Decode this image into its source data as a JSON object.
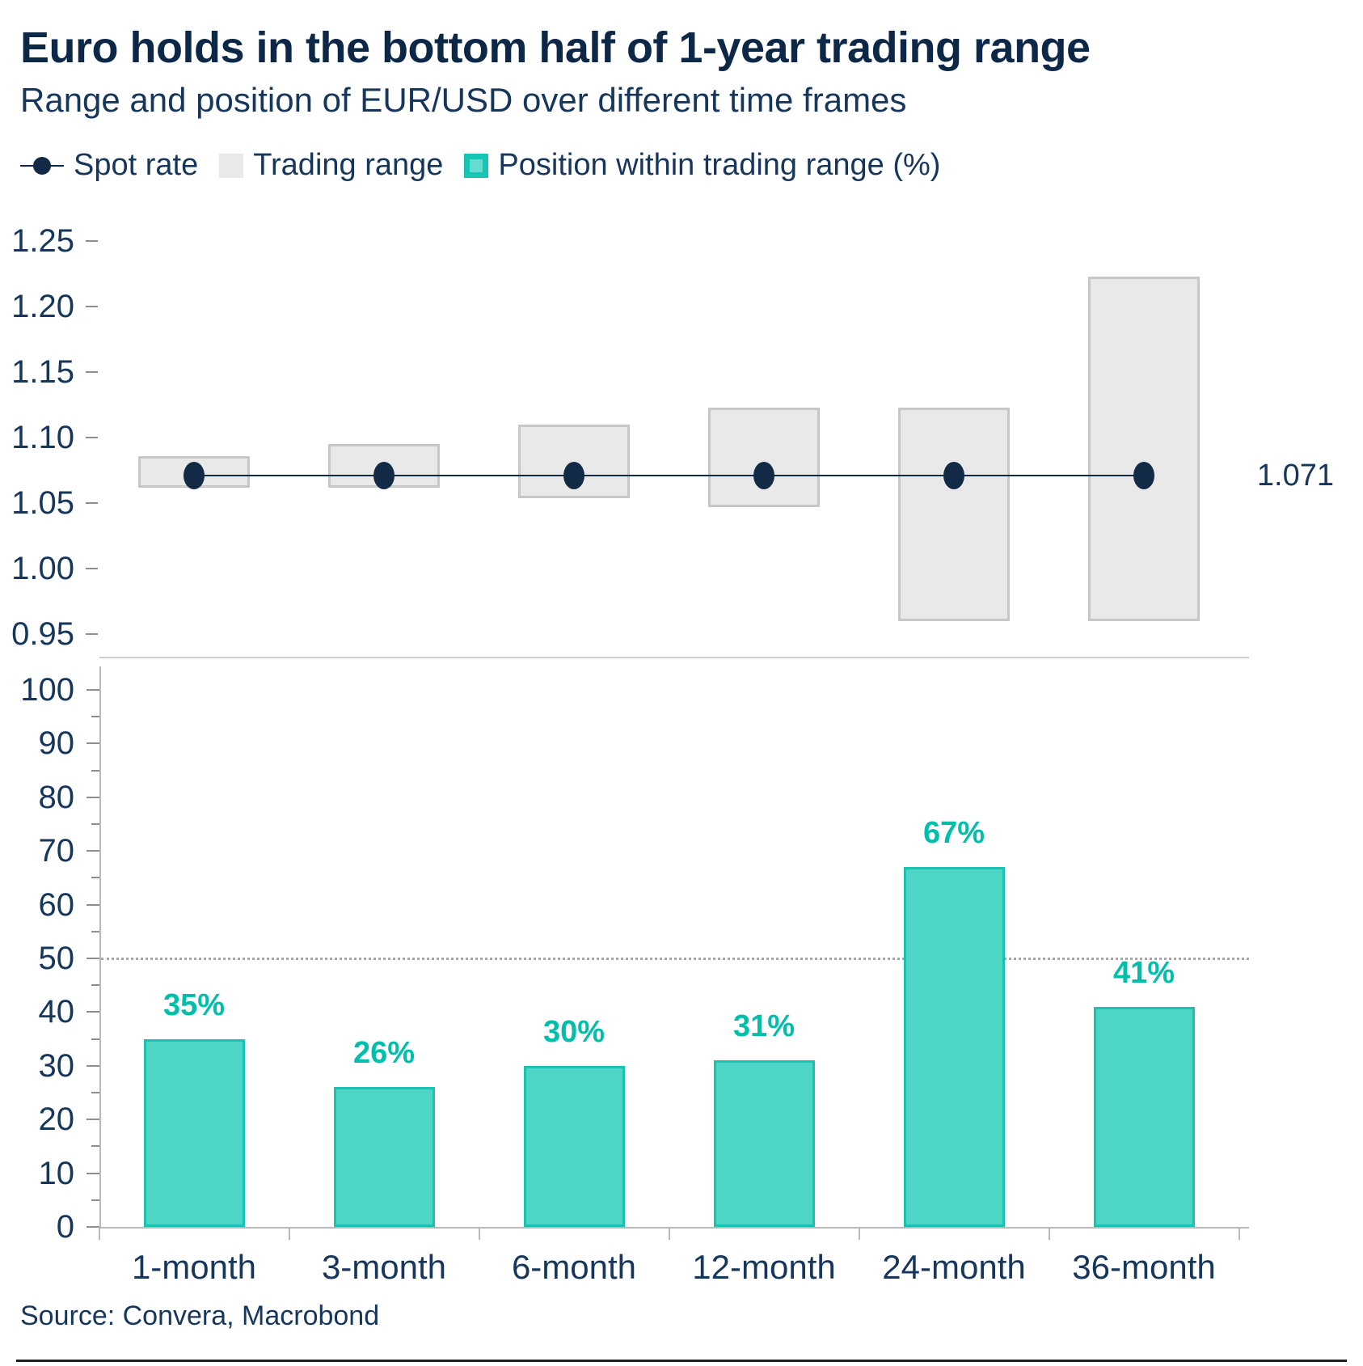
{
  "header": {
    "title": "Euro holds in the bottom half of 1-year trading range",
    "subtitle": "Range and position of EUR/USD over different time frames"
  },
  "legend": {
    "items": [
      {
        "label": "Spot rate",
        "marker": "spot-dot-line-icon"
      },
      {
        "label": "Trading range",
        "marker": "gray-square-icon"
      },
      {
        "label": "Position within trading range (%)",
        "marker": "teal-square-icon"
      }
    ]
  },
  "footer": {
    "source": "Source: Convera, Macrobond"
  },
  "colors": {
    "title_navy": "#0d2847",
    "text_navy": "#16365c",
    "spot_navy": "#122a45",
    "range_fill": "#e9e9e9",
    "range_border": "#c7c7c7",
    "position_fill": "#4dd6c6",
    "position_border": "#1bc2b2",
    "position_label": "#00bfaa",
    "axis_gray": "#b9b9b9",
    "reference_dotted": "#a6a6a6"
  },
  "chart_data": [
    {
      "type": "range-bar",
      "name": "EUR/USD range and spot rate over different time frames",
      "categories": [
        "1-month",
        "3-month",
        "6-month",
        "12-month",
        "24-month",
        "36-month"
      ],
      "series": [
        {
          "name": "Trading range",
          "low": [
            1.062,
            1.062,
            1.054,
            1.047,
            0.96,
            0.96
          ],
          "high": [
            1.086,
            1.095,
            1.11,
            1.123,
            1.123,
            1.223
          ]
        },
        {
          "name": "Spot rate",
          "value": 1.071,
          "label": "1.071"
        }
      ],
      "ylim": [
        0.95,
        1.25
      ],
      "yticks": [
        {
          "v": 1.25,
          "label": "1.25"
        },
        {
          "v": 1.2,
          "label": "1.20"
        },
        {
          "v": 1.15,
          "label": "1.15"
        },
        {
          "v": 1.1,
          "label": "1.10"
        },
        {
          "v": 1.05,
          "label": "1.05"
        },
        {
          "v": 1.0,
          "label": "1.00"
        },
        {
          "v": 0.95,
          "label": "0.95"
        }
      ],
      "grid": false,
      "legend_position": "top"
    },
    {
      "type": "bar",
      "name": "Position within trading range (%)",
      "categories": [
        "1-month",
        "3-month",
        "6-month",
        "12-month",
        "24-month",
        "36-month"
      ],
      "values": [
        35,
        26,
        30,
        31,
        67,
        41
      ],
      "labels": [
        "35%",
        "26%",
        "30%",
        "31%",
        "67%",
        "41%"
      ],
      "ylim": [
        0,
        100
      ],
      "ytick_major": 10,
      "ytick_minor": 5,
      "reference_line": 50,
      "grid": false
    }
  ]
}
